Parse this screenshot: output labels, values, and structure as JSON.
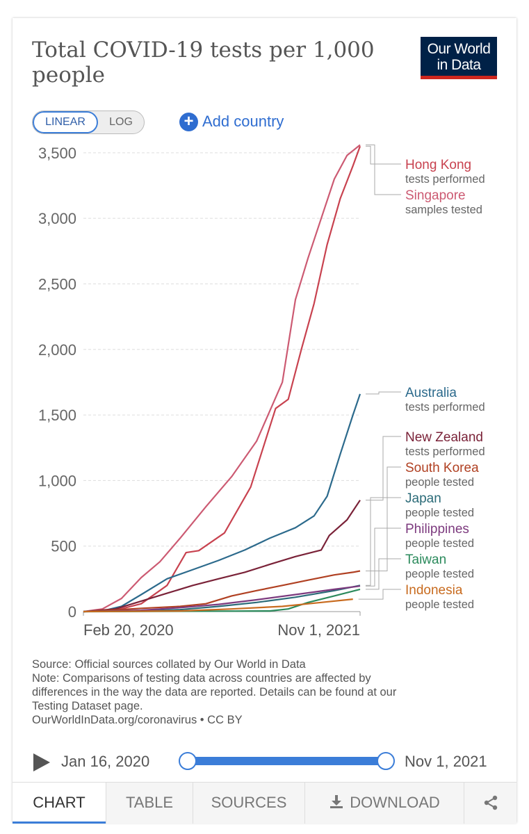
{
  "title": "Total COVID-19 tests per 1,000 people",
  "logo": {
    "line1": "Our World",
    "line2": "in Data"
  },
  "controls": {
    "linear_label": "LINEAR",
    "log_label": "LOG",
    "add_country_label": "Add country",
    "add_icon": "plus-circle-icon"
  },
  "chart_data": {
    "type": "line",
    "x_ticks": [
      "Feb 20, 2020",
      "Nov 1, 2021"
    ],
    "x_range": [
      "2020-01-16",
      "2021-11-01"
    ],
    "ylim": [
      0,
      3600
    ],
    "y_ticks": [
      0,
      500,
      1000,
      1500,
      2000,
      2500,
      3000,
      3500
    ],
    "y_tick_labels": [
      "0",
      "500",
      "1,000",
      "1,500",
      "2,000",
      "2,500",
      "3,000",
      "3,500"
    ],
    "grid": "horizontal dashed",
    "legend": "right, inline labels",
    "series": [
      {
        "name": "Hong Kong",
        "sub": "tests performed",
        "color": "#c8424f",
        "points": [
          [
            "2020-01-16",
            0
          ],
          [
            "2020-04-01",
            10
          ],
          [
            "2020-06-01",
            60
          ],
          [
            "2020-08-01",
            200
          ],
          [
            "2020-09-15",
            450
          ],
          [
            "2020-10-15",
            465
          ],
          [
            "2020-12-15",
            600
          ],
          [
            "2021-02-15",
            950
          ],
          [
            "2021-04-15",
            1550
          ],
          [
            "2021-05-15",
            1620
          ],
          [
            "2021-06-15",
            2000
          ],
          [
            "2021-07-15",
            2350
          ],
          [
            "2021-08-15",
            2800
          ],
          [
            "2021-09-15",
            3150
          ],
          [
            "2021-10-15",
            3400
          ],
          [
            "2021-11-01",
            3550
          ]
        ]
      },
      {
        "name": "Singapore",
        "sub": "samples tested",
        "color": "#cc5a72",
        "points": [
          [
            "2020-01-16",
            0
          ],
          [
            "2020-03-01",
            20
          ],
          [
            "2020-04-15",
            100
          ],
          [
            "2020-06-01",
            260
          ],
          [
            "2020-07-15",
            380
          ],
          [
            "2020-09-01",
            560
          ],
          [
            "2020-11-01",
            800
          ],
          [
            "2021-01-01",
            1030
          ],
          [
            "2021-03-01",
            1300
          ],
          [
            "2021-05-01",
            1750
          ],
          [
            "2021-06-01",
            2380
          ],
          [
            "2021-07-01",
            2700
          ],
          [
            "2021-08-01",
            3000
          ],
          [
            "2021-09-01",
            3300
          ],
          [
            "2021-10-01",
            3480
          ],
          [
            "2021-11-01",
            3560
          ]
        ]
      },
      {
        "name": "Australia",
        "sub": "tests performed",
        "color": "#2c6a8c",
        "points": [
          [
            "2020-01-16",
            0
          ],
          [
            "2020-03-01",
            5
          ],
          [
            "2020-04-15",
            40
          ],
          [
            "2020-06-01",
            130
          ],
          [
            "2020-08-01",
            250
          ],
          [
            "2020-10-01",
            320
          ],
          [
            "2020-12-01",
            390
          ],
          [
            "2021-02-01",
            470
          ],
          [
            "2021-04-01",
            560
          ],
          [
            "2021-06-01",
            640
          ],
          [
            "2021-07-15",
            730
          ],
          [
            "2021-08-15",
            880
          ],
          [
            "2021-09-15",
            1200
          ],
          [
            "2021-10-15",
            1500
          ],
          [
            "2021-11-01",
            1660
          ]
        ]
      },
      {
        "name": "New Zealand",
        "sub": "tests performed",
        "color": "#7a2238",
        "points": [
          [
            "2020-01-16",
            0
          ],
          [
            "2020-04-01",
            20
          ],
          [
            "2020-06-01",
            80
          ],
          [
            "2020-08-01",
            140
          ],
          [
            "2020-10-01",
            200
          ],
          [
            "2020-12-01",
            250
          ],
          [
            "2021-02-01",
            300
          ],
          [
            "2021-04-01",
            360
          ],
          [
            "2021-06-01",
            420
          ],
          [
            "2021-08-01",
            470
          ],
          [
            "2021-08-20",
            580
          ],
          [
            "2021-10-01",
            700
          ],
          [
            "2021-11-01",
            850
          ]
        ]
      },
      {
        "name": "South Korea",
        "sub": "people tested",
        "color": "#b04022",
        "points": [
          [
            "2020-01-16",
            0
          ],
          [
            "2020-03-15",
            10
          ],
          [
            "2020-06-01",
            25
          ],
          [
            "2020-09-01",
            40
          ],
          [
            "2020-11-01",
            60
          ],
          [
            "2021-01-01",
            120
          ],
          [
            "2021-03-01",
            160
          ],
          [
            "2021-05-01",
            200
          ],
          [
            "2021-07-01",
            240
          ],
          [
            "2021-09-01",
            280
          ],
          [
            "2021-10-15",
            300
          ],
          [
            "2021-11-01",
            310
          ]
        ]
      },
      {
        "name": "Japan",
        "sub": "people tested",
        "color": "#2b6b78",
        "points": [
          [
            "2020-01-16",
            0
          ],
          [
            "2020-06-01",
            5
          ],
          [
            "2020-09-01",
            15
          ],
          [
            "2020-12-01",
            40
          ],
          [
            "2021-03-01",
            70
          ],
          [
            "2021-06-01",
            110
          ],
          [
            "2021-09-01",
            160
          ],
          [
            "2021-11-01",
            200
          ]
        ]
      },
      {
        "name": "Philippines",
        "sub": "people tested",
        "color": "#7c3a7e",
        "points": [
          [
            "2020-01-16",
            0
          ],
          [
            "2020-06-01",
            10
          ],
          [
            "2020-09-01",
            30
          ],
          [
            "2020-12-01",
            55
          ],
          [
            "2021-03-01",
            90
          ],
          [
            "2021-06-01",
            130
          ],
          [
            "2021-09-01",
            170
          ],
          [
            "2021-11-01",
            195
          ]
        ]
      },
      {
        "name": "Taiwan",
        "sub": "people tested",
        "color": "#2b8a5c",
        "points": [
          [
            "2020-01-16",
            0
          ],
          [
            "2021-04-01",
            5
          ],
          [
            "2021-05-15",
            20
          ],
          [
            "2021-07-01",
            70
          ],
          [
            "2021-09-01",
            120
          ],
          [
            "2021-11-01",
            170
          ]
        ]
      },
      {
        "name": "Indonesia",
        "sub": "people tested",
        "color": "#c86b1f",
        "points": [
          [
            "2020-01-16",
            0
          ],
          [
            "2020-09-01",
            5
          ],
          [
            "2021-01-01",
            20
          ],
          [
            "2021-05-01",
            40
          ],
          [
            "2021-08-01",
            70
          ],
          [
            "2021-10-15",
            95
          ]
        ]
      }
    ]
  },
  "notes": {
    "source": "Source: Official sources collated by Our World in Data",
    "note1": "Note: Comparisons of testing data across countries are affected by",
    "note2": "differences in the way the data are reported. Details can be found at our",
    "note3": "Testing Dataset page.",
    "license": "OurWorldInData.org/coronavirus • CC BY"
  },
  "timeline": {
    "start": "Jan 16, 2020",
    "end": "Nov 1, 2021",
    "play_icon": "play-icon"
  },
  "tabs": {
    "chart": "CHART",
    "table": "TABLE",
    "sources": "SOURCES",
    "download": "DOWNLOAD",
    "download_icon": "download-icon",
    "share_icon": "share-icon"
  }
}
